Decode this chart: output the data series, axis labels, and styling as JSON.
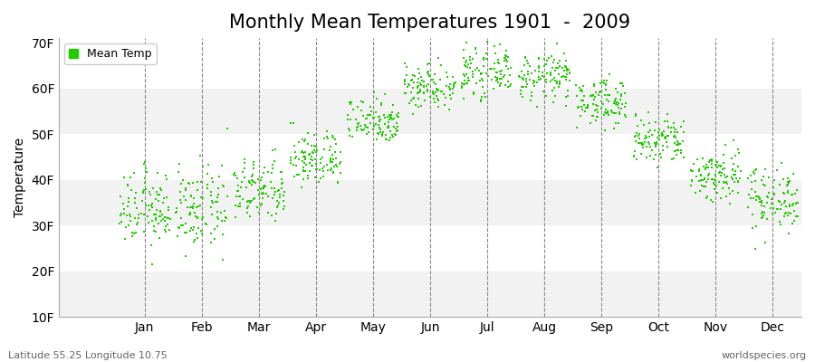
{
  "title": "Monthly Mean Temperatures 1901  -  2009",
  "ylabel": "Temperature",
  "xlabel_months": [
    "Jan",
    "Feb",
    "Mar",
    "Apr",
    "May",
    "Jun",
    "Jul",
    "Aug",
    "Sep",
    "Oct",
    "Nov",
    "Dec"
  ],
  "legend_label": "Mean Temp",
  "dot_color": "#22cc00",
  "dot_size": 3.5,
  "ylim": [
    10,
    71
  ],
  "yticks": [
    10,
    20,
    30,
    40,
    50,
    60,
    70
  ],
  "ytick_labels": [
    "10F",
    "20F",
    "30F",
    "40F",
    "50F",
    "60F",
    "70F"
  ],
  "background_color": "#ffffff",
  "plot_bg_color": "#ffffff",
  "band_colors": [
    "#f2f2f2",
    "#ffffff"
  ],
  "grid_color": "#888888",
  "title_fontsize": 15,
  "axis_fontsize": 10,
  "tick_fontsize": 10,
  "subtitle_left": "Latitude 55.25 Longitude 10.75",
  "subtitle_right": "worldspecies.org",
  "monthly_mean_F": [
    33.5,
    33.5,
    37.5,
    44.5,
    53.0,
    60.5,
    63.5,
    62.5,
    57.0,
    48.5,
    41.0,
    36.0
  ],
  "monthly_std_F": [
    4.0,
    4.5,
    3.5,
    3.0,
    2.5,
    2.5,
    2.5,
    2.5,
    2.5,
    2.8,
    3.0,
    3.5
  ],
  "n_years": 109,
  "xlim": [
    -0.5,
    12.5
  ]
}
